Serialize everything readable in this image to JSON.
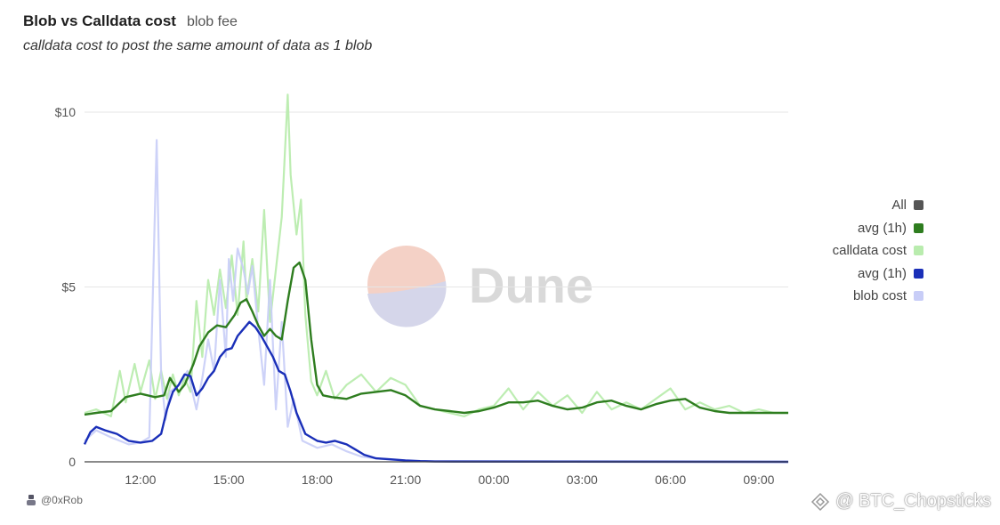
{
  "header": {
    "title": "Blob vs Calldata cost",
    "tab": "blob fee",
    "subtitle": "calldata cost to post the same amount of data as 1 blob"
  },
  "footer": {
    "author": "@0xRob"
  },
  "watermark": {
    "text": "@ BTC_Chopsticks",
    "icon": "diamond-logo-icon"
  },
  "brand_logo": {
    "text": "Dune"
  },
  "colors": {
    "avg_green": "#2e7d1f",
    "calldata": "#b9ecae",
    "avg_blue": "#1a2fb8",
    "blob": "#c8cdf7",
    "all": "#555555",
    "grid": "#e6e6e6"
  },
  "chart_data": {
    "type": "line",
    "title": "Blob vs Calldata cost",
    "subtitle": "calldata cost to post the same amount of data as 1 blob",
    "xlabel": "",
    "ylabel": "",
    "x_unit": "hour of day",
    "x_ticks": [
      {
        "label": "12:00",
        "x": 12
      },
      {
        "label": "15:00",
        "x": 15
      },
      {
        "label": "18:00",
        "x": 18
      },
      {
        "label": "21:00",
        "x": 21
      },
      {
        "label": "00:00",
        "x": 24
      },
      {
        "label": "03:00",
        "x": 27
      },
      {
        "label": "06:00",
        "x": 30
      },
      {
        "label": "09:00",
        "x": 33
      }
    ],
    "xlim": [
      10.1,
      34.0
    ],
    "y_ticks": [
      {
        "label": "0",
        "y": 0
      },
      {
        "label": "$5",
        "y": 5
      },
      {
        "label": "$10",
        "y": 10
      }
    ],
    "ylim": [
      0,
      10
    ],
    "grid": true,
    "legend_position": "right",
    "legend": [
      "All",
      "avg (1h)",
      "calldata cost",
      "avg (1h)",
      "blob cost"
    ],
    "series": [
      {
        "name": "calldata cost",
        "style": "raw",
        "x": [
          10.1,
          10.5,
          11.0,
          11.3,
          11.5,
          11.8,
          12.0,
          12.3,
          12.5,
          12.7,
          12.9,
          13.1,
          13.3,
          13.5,
          13.7,
          13.9,
          14.1,
          14.3,
          14.5,
          14.7,
          14.9,
          15.1,
          15.3,
          15.5,
          15.6,
          15.8,
          16.0,
          16.2,
          16.4,
          16.6,
          16.8,
          17.0,
          17.1,
          17.3,
          17.45,
          17.6,
          17.8,
          18.0,
          18.3,
          18.6,
          19.0,
          19.5,
          20.0,
          20.5,
          21.0,
          21.5,
          22.0,
          22.5,
          23.0,
          23.5,
          24.0,
          24.5,
          25.0,
          25.5,
          26.0,
          26.5,
          27.0,
          27.5,
          28.0,
          28.5,
          29.0,
          29.5,
          30.0,
          30.5,
          31.0,
          31.5,
          32.0,
          32.5,
          33.0,
          33.5,
          34.0
        ],
        "y": [
          1.4,
          1.5,
          1.3,
          2.6,
          1.7,
          2.8,
          2.0,
          2.9,
          1.8,
          2.6,
          1.8,
          2.5,
          1.9,
          2.4,
          2.0,
          4.6,
          3.0,
          5.2,
          4.2,
          5.5,
          4.4,
          5.9,
          4.2,
          6.3,
          4.6,
          5.8,
          4.3,
          7.2,
          4.0,
          5.5,
          7.0,
          10.5,
          8.2,
          6.5,
          7.5,
          4.2,
          2.3,
          1.9,
          2.6,
          1.8,
          2.2,
          2.5,
          2.0,
          2.4,
          2.2,
          1.6,
          1.5,
          1.4,
          1.3,
          1.5,
          1.6,
          2.1,
          1.5,
          2.0,
          1.6,
          1.9,
          1.4,
          2.0,
          1.5,
          1.7,
          1.5,
          1.8,
          2.1,
          1.5,
          1.7,
          1.5,
          1.6,
          1.4,
          1.5,
          1.4,
          1.4
        ]
      },
      {
        "name": "blob cost",
        "style": "raw",
        "x": [
          10.1,
          10.5,
          11.0,
          11.3,
          11.6,
          12.0,
          12.3,
          12.55,
          12.7,
          12.85,
          13.0,
          13.3,
          13.6,
          13.9,
          14.1,
          14.3,
          14.5,
          14.7,
          14.9,
          15.0,
          15.15,
          15.3,
          15.5,
          15.65,
          15.8,
          16.0,
          16.2,
          16.4,
          16.6,
          16.8,
          17.0,
          17.2,
          17.5,
          18.0,
          18.5,
          19.0,
          19.5,
          20.0,
          20.5,
          21.0,
          21.5,
          22.0,
          34.0
        ],
        "y": [
          0.6,
          0.9,
          0.7,
          0.6,
          0.5,
          0.55,
          0.7,
          9.2,
          2.5,
          1.2,
          2.0,
          2.2,
          2.6,
          1.5,
          2.4,
          3.5,
          2.6,
          5.2,
          3.0,
          5.8,
          4.6,
          6.1,
          5.5,
          4.8,
          5.6,
          3.8,
          2.2,
          5.2,
          1.5,
          4.0,
          1.0,
          1.8,
          0.6,
          0.4,
          0.5,
          0.3,
          0.15,
          0.1,
          0.06,
          0.03,
          0.02,
          0.01,
          0.0
        ]
      },
      {
        "name": "avg (1h)",
        "style": "avg",
        "color_ref": "avg_green",
        "x": [
          10.1,
          10.5,
          11.0,
          11.5,
          12.0,
          12.5,
          12.8,
          13.0,
          13.3,
          13.5,
          13.8,
          14.0,
          14.3,
          14.6,
          14.9,
          15.2,
          15.4,
          15.6,
          15.8,
          16.0,
          16.2,
          16.4,
          16.6,
          16.8,
          17.0,
          17.2,
          17.4,
          17.6,
          17.8,
          18.0,
          18.2,
          18.5,
          19.0,
          19.5,
          20.0,
          20.5,
          21.0,
          21.5,
          22.0,
          22.5,
          23.0,
          23.5,
          24.0,
          24.5,
          25.0,
          25.5,
          26.0,
          26.5,
          27.0,
          27.5,
          28.0,
          28.5,
          29.0,
          29.5,
          30.0,
          30.5,
          31.0,
          31.5,
          32.0,
          32.5,
          33.0,
          33.5,
          34.0
        ],
        "y": [
          1.35,
          1.4,
          1.45,
          1.85,
          1.95,
          1.85,
          1.9,
          2.4,
          2.0,
          2.2,
          2.8,
          3.3,
          3.7,
          3.9,
          3.85,
          4.2,
          4.55,
          4.65,
          4.3,
          3.9,
          3.6,
          3.8,
          3.6,
          3.5,
          4.6,
          5.55,
          5.7,
          5.2,
          3.5,
          2.2,
          1.9,
          1.85,
          1.8,
          1.95,
          2.0,
          2.05,
          1.9,
          1.6,
          1.5,
          1.45,
          1.4,
          1.45,
          1.55,
          1.7,
          1.7,
          1.75,
          1.6,
          1.5,
          1.55,
          1.7,
          1.75,
          1.6,
          1.5,
          1.65,
          1.75,
          1.8,
          1.55,
          1.45,
          1.4,
          1.4,
          1.4,
          1.4,
          1.4
        ]
      },
      {
        "name": "avg (1h)",
        "style": "avg",
        "color_ref": "avg_blue",
        "x": [
          10.1,
          10.3,
          10.5,
          10.8,
          11.2,
          11.6,
          12.0,
          12.4,
          12.7,
          12.9,
          13.1,
          13.3,
          13.5,
          13.7,
          13.9,
          14.1,
          14.3,
          14.5,
          14.7,
          14.9,
          15.1,
          15.3,
          15.5,
          15.7,
          15.9,
          16.1,
          16.3,
          16.5,
          16.7,
          16.9,
          17.1,
          17.3,
          17.6,
          18.0,
          18.3,
          18.6,
          19.0,
          19.3,
          19.6,
          20.0,
          20.5,
          21.0,
          21.5,
          22.0,
          34.0
        ],
        "y": [
          0.5,
          0.85,
          1.0,
          0.9,
          0.8,
          0.6,
          0.55,
          0.6,
          0.8,
          1.5,
          2.0,
          2.2,
          2.5,
          2.45,
          1.9,
          2.1,
          2.4,
          2.6,
          3.0,
          3.2,
          3.25,
          3.6,
          3.8,
          4.0,
          3.85,
          3.6,
          3.3,
          3.0,
          2.6,
          2.5,
          2.0,
          1.4,
          0.8,
          0.6,
          0.55,
          0.6,
          0.5,
          0.35,
          0.2,
          0.1,
          0.07,
          0.04,
          0.02,
          0.01,
          0.0
        ]
      }
    ]
  }
}
